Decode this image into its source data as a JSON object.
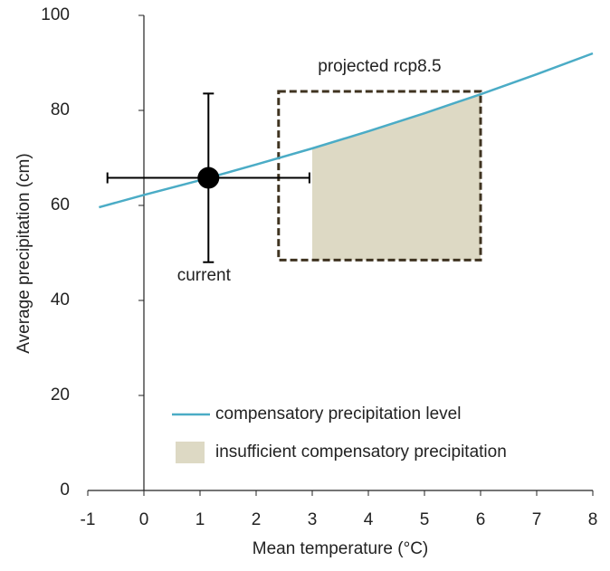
{
  "chart_data": {
    "type": "line",
    "x_label": "Mean temperature (°C)",
    "y_label": "Average precipitation (cm)",
    "xlim": [
      -1,
      8
    ],
    "ylim": [
      0,
      100
    ],
    "xticks": [
      -1,
      0,
      1,
      2,
      3,
      4,
      5,
      6,
      7,
      8
    ],
    "yticks": [
      0,
      20,
      40,
      60,
      80,
      100
    ],
    "legend": "lower right",
    "series": [
      {
        "name": "compensatory precipitation level",
        "color": "#4bacc6",
        "x": [
          -0.8,
          0,
          1,
          2,
          3,
          4,
          5,
          6,
          7,
          8
        ],
        "values": [
          59.6,
          62.2,
          65.3,
          68.6,
          72.0,
          75.6,
          79.4,
          83.4,
          87.6,
          92.0
        ]
      }
    ],
    "area": {
      "name": "insufficient compensatory precipitation",
      "color": "#ddd9c4",
      "x": [
        3,
        4,
        5,
        6
      ],
      "upper": [
        72.0,
        75.6,
        79.4,
        83.4
      ],
      "lower": [
        48.5,
        48.5,
        48.5,
        48.5
      ]
    },
    "current": {
      "label": "current",
      "x": 1.15,
      "y": 65.8,
      "x_error": 1.8,
      "y_error": 17.75,
      "color": "#000000"
    },
    "projected": {
      "label": "projected rcp8.5",
      "xlim": [
        2.4,
        6.0
      ],
      "ylim": [
        48.5,
        84
      ],
      "color": "#3f3320"
    }
  }
}
